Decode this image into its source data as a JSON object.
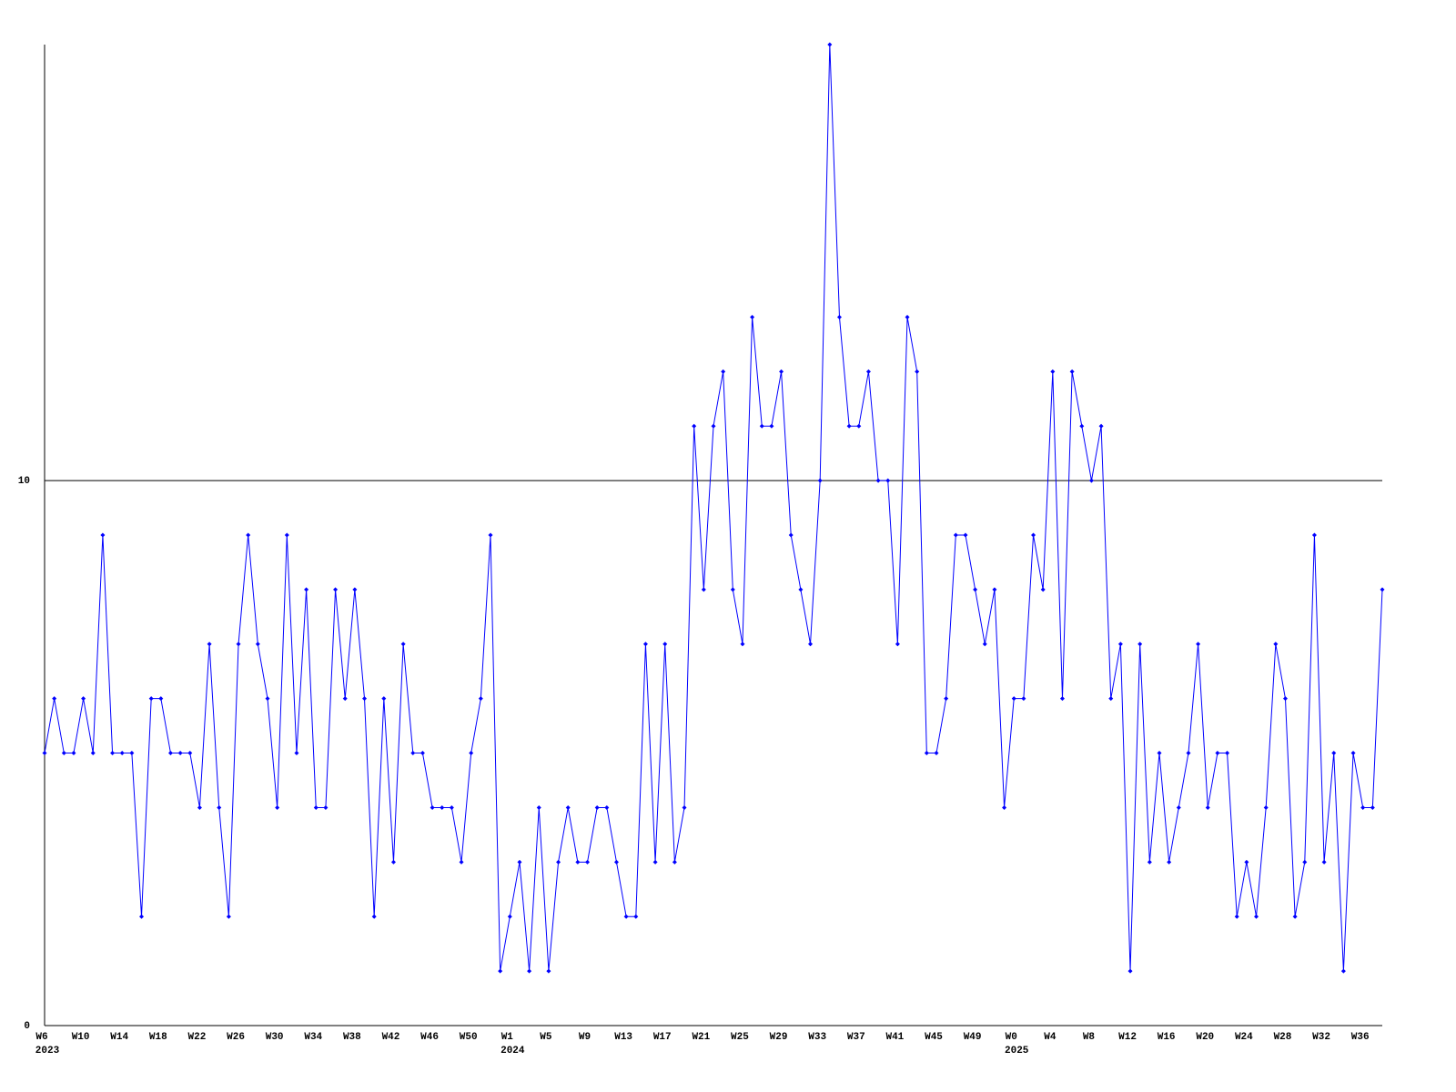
{
  "chart_data": {
    "type": "line",
    "categories": [
      "W6",
      null,
      null,
      null,
      "W10",
      null,
      null,
      null,
      "W14",
      null,
      null,
      null,
      "W18",
      null,
      null,
      null,
      "W22",
      null,
      null,
      null,
      "W26",
      null,
      null,
      null,
      "W30",
      null,
      null,
      null,
      "W34",
      null,
      null,
      null,
      "W38",
      null,
      null,
      null,
      "W42",
      null,
      null,
      null,
      "W46",
      null,
      null,
      null,
      "W50",
      null,
      null,
      null,
      "W1",
      null,
      null,
      null,
      "W5",
      null,
      null,
      null,
      "W9",
      null,
      null,
      null,
      "W13",
      null,
      null,
      null,
      "W17",
      null,
      null,
      null,
      "W21",
      null,
      null,
      null,
      "W25",
      null,
      null,
      null,
      "W29",
      null,
      null,
      null,
      "W33",
      null,
      null,
      null,
      "W37",
      null,
      null,
      null,
      "W41",
      null,
      null,
      null,
      "W45",
      null,
      null,
      null,
      "W49",
      null,
      null,
      null,
      "W0",
      null,
      null,
      null,
      "W4",
      null,
      null,
      null,
      "W8",
      null,
      null,
      null,
      "W12",
      null,
      null,
      null,
      "W16",
      null,
      null,
      null,
      "W20",
      null,
      null,
      null,
      "W24",
      null,
      null,
      null,
      "W28",
      null,
      null,
      null,
      "W32",
      null,
      null,
      null,
      "W36",
      null,
      null
    ],
    "category_years": [
      "2023",
      null,
      null,
      null,
      null,
      null,
      null,
      null,
      null,
      null,
      null,
      null,
      null,
      null,
      null,
      null,
      null,
      null,
      null,
      null,
      null,
      null,
      null,
      null,
      null,
      null,
      null,
      null,
      null,
      null,
      null,
      null,
      null,
      null,
      null,
      null,
      null,
      null,
      null,
      null,
      null,
      null,
      null,
      null,
      null,
      null,
      null,
      null,
      "2024",
      null,
      null,
      null,
      null,
      null,
      null,
      null,
      null,
      null,
      null,
      null,
      null,
      null,
      null,
      null,
      null,
      null,
      null,
      null,
      null,
      null,
      null,
      null,
      null,
      null,
      null,
      null,
      null,
      null,
      null,
      null,
      null,
      null,
      null,
      null,
      null,
      null,
      null,
      null,
      null,
      null,
      null,
      null,
      null,
      null,
      null,
      null,
      null,
      null,
      null,
      null,
      "2025",
      null,
      null,
      null,
      null,
      null,
      null,
      null,
      null,
      null,
      null,
      null,
      null,
      null,
      null,
      null,
      null,
      null,
      null,
      null,
      null,
      null,
      null,
      null,
      null,
      null,
      null,
      null,
      null,
      null,
      null,
      null,
      null,
      null,
      null,
      null,
      null,
      null,
      null
    ],
    "series": [
      {
        "color": "#0000ff",
        "values": [
          5,
          6,
          5,
          5,
          6,
          5,
          9,
          5,
          5,
          5,
          2,
          6,
          6,
          5,
          5,
          5,
          4,
          7,
          4,
          2,
          7,
          9,
          7,
          6,
          4,
          9,
          5,
          8,
          4,
          4,
          8,
          6,
          8,
          6,
          2,
          6,
          3,
          7,
          5,
          5,
          4,
          4,
          4,
          3,
          5,
          6,
          9,
          1,
          2,
          3,
          1,
          4,
          1,
          3,
          4,
          3,
          3,
          4,
          4,
          3,
          2,
          2,
          7,
          3,
          7,
          3,
          4,
          11,
          8,
          11,
          12,
          8,
          7,
          13,
          11,
          11,
          12,
          9,
          8,
          7,
          10,
          18,
          13,
          11,
          11,
          12,
          10,
          10,
          7,
          13,
          12,
          5,
          5,
          6,
          9,
          9,
          8,
          7,
          8,
          4,
          6,
          6,
          9,
          8,
          12,
          6,
          12,
          11,
          10,
          11,
          6,
          7,
          1,
          7,
          3,
          5,
          3,
          4,
          5,
          7,
          4,
          5,
          5,
          2,
          3,
          2,
          4,
          7,
          6,
          2,
          3,
          9,
          3,
          5,
          1,
          5,
          4,
          4,
          8
        ]
      }
    ],
    "ylim": [
      0,
      18
    ],
    "yticks": [
      0,
      10
    ],
    "grid": true
  }
}
